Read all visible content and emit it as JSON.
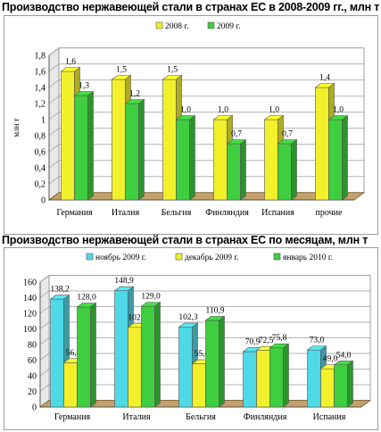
{
  "chart_data": [
    {
      "type": "bar",
      "title": "Производство нержавеющей стали в странах ЕС в 2008-2009 гг., млн т",
      "ylabel": "млн т",
      "xlabel": "",
      "categories": [
        "Германия",
        "Италия",
        "Бельгия",
        "Финляндия",
        "Испания",
        "прочие"
      ],
      "series": [
        {
          "name": "2008 г.",
          "values": [
            1.6,
            1.5,
            1.5,
            1.0,
            1.0,
            1.4
          ],
          "labels": [
            "1,6",
            "1,5",
            "1,5",
            "1,0",
            "1,0",
            "1,4"
          ],
          "color": "#f2f02a"
        },
        {
          "name": "2009 г.",
          "values": [
            1.3,
            1.2,
            1.0,
            0.7,
            0.7,
            1.0
          ],
          "labels": [
            "1,3",
            "1,2",
            "1,0",
            "0,7",
            "0,7",
            "1,0"
          ],
          "color": "#3fce3f"
        }
      ],
      "ylim": [
        0,
        1.8
      ],
      "yticks": [
        "0",
        "0,2",
        "0,4",
        "0,6",
        "0,8",
        "1",
        "1,2",
        "1,4",
        "1,6",
        "1,8"
      ],
      "grid": true,
      "legend": "top-center"
    },
    {
      "type": "bar",
      "title": "Производство нержавеющей стали в странах ЕС по месяцам, млн т",
      "xlabel": "",
      "ylabel": "",
      "categories": [
        "Германия",
        "Италия",
        "Бельгия",
        "Финляндия",
        "Испания"
      ],
      "series": [
        {
          "name": "ноябрь 2009 г.",
          "values": [
            138.2,
            148.9,
            102.3,
            70.9,
            73.0
          ],
          "labels": [
            "138,2",
            "148,9",
            "102,3",
            "70,9",
            "73,0"
          ],
          "color": "#4fd9e6"
        },
        {
          "name": "декабрь 2009 г.",
          "values": [
            56.8,
            102.0,
            55.4,
            72.5,
            49.0
          ],
          "labels": [
            "56,8",
            "102,0",
            "55,4",
            "72,5",
            "49,0"
          ],
          "color": "#f2f02a"
        },
        {
          "name": "январь 2010 г.",
          "values": [
            128.0,
            129.0,
            110.9,
            75.8,
            54.0
          ],
          "labels": [
            "128,0",
            "129,0",
            "110,9",
            "75,8",
            "54,0"
          ],
          "color": "#3fce3f"
        }
      ],
      "ylim": [
        0,
        160
      ],
      "yticks": [
        "0",
        "20",
        "40",
        "60",
        "80",
        "100",
        "120",
        "140",
        "160"
      ],
      "grid": true,
      "legend": "top-center"
    }
  ]
}
